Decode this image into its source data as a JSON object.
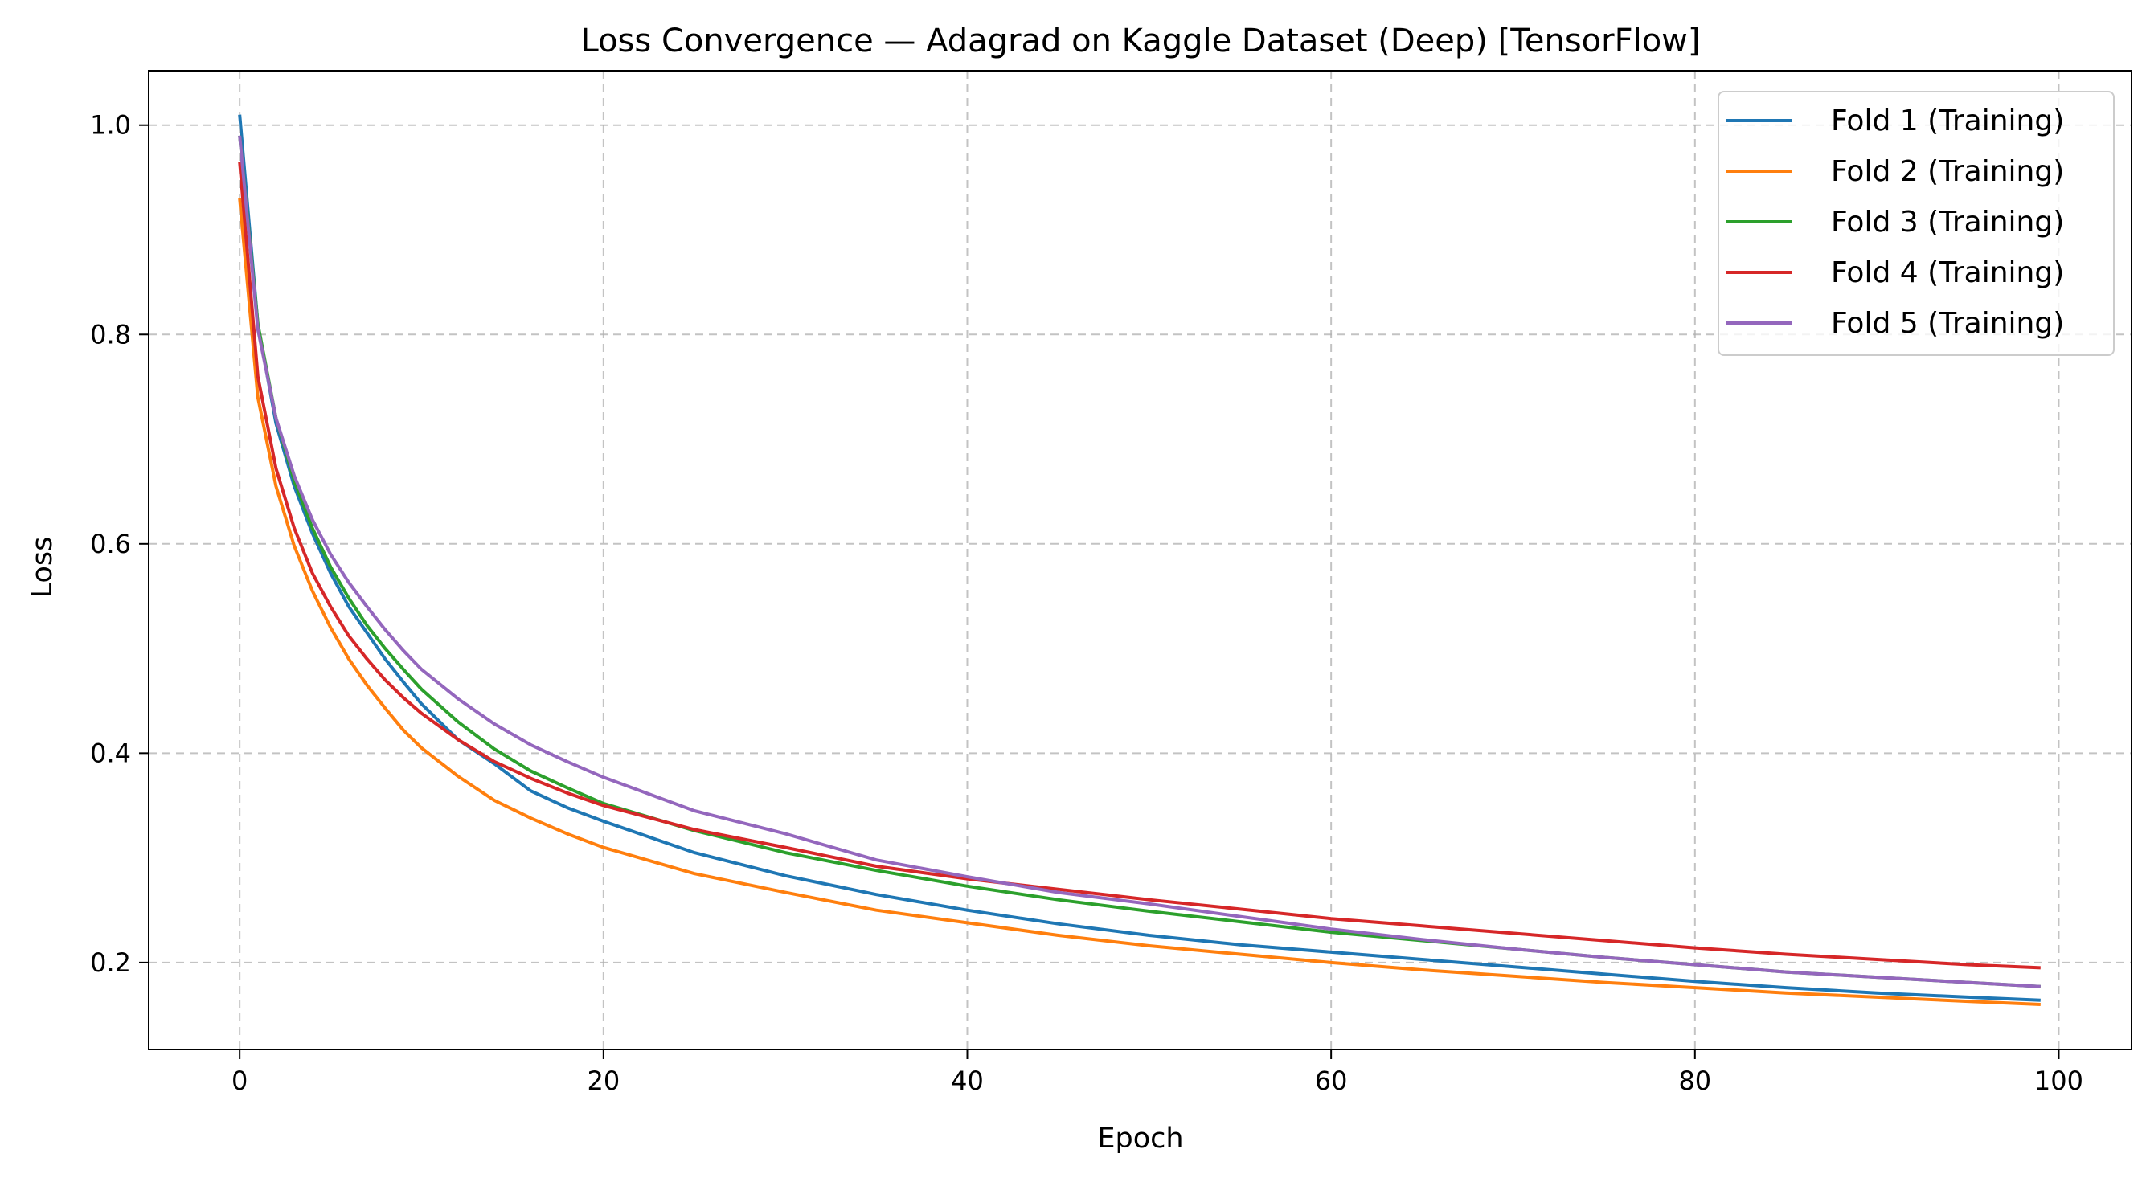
{
  "chart_data": {
    "type": "line",
    "title": "Loss Convergence — Adagrad on Kaggle Dataset (Deep) [TensorFlow]",
    "xlabel": "Epoch",
    "ylabel": "Loss",
    "xlim": [
      -5,
      104
    ],
    "ylim": [
      0.117,
      1.052
    ],
    "xticks": [
      0,
      20,
      40,
      60,
      80,
      100
    ],
    "yticks": [
      0.2,
      0.4,
      0.6,
      0.8,
      1.0
    ],
    "xtick_labels": [
      "0",
      "20",
      "40",
      "60",
      "80",
      "100"
    ],
    "ytick_labels": [
      "0.2",
      "0.4",
      "0.6",
      "0.8",
      "1.0"
    ],
    "grid": true,
    "legend_position": "top-right",
    "x": [
      0,
      1,
      2,
      3,
      4,
      5,
      6,
      7,
      8,
      9,
      10,
      12,
      14,
      16,
      18,
      20,
      25,
      30,
      35,
      40,
      45,
      50,
      55,
      60,
      65,
      70,
      75,
      80,
      85,
      90,
      95,
      99
    ],
    "series": [
      {
        "name": "Fold 1 (Training)",
        "color": "#1f77b4",
        "values": [
          1.01,
          0.81,
          0.715,
          0.655,
          0.61,
          0.572,
          0.54,
          0.515,
          0.49,
          0.468,
          0.447,
          0.413,
          0.39,
          0.364,
          0.348,
          0.335,
          0.305,
          0.283,
          0.265,
          0.25,
          0.237,
          0.226,
          0.217,
          0.21,
          0.203,
          0.196,
          0.189,
          0.182,
          0.176,
          0.171,
          0.167,
          0.164
        ]
      },
      {
        "name": "Fold 2 (Training)",
        "color": "#ff7f0e",
        "values": [
          0.93,
          0.74,
          0.655,
          0.598,
          0.555,
          0.52,
          0.49,
          0.465,
          0.443,
          0.422,
          0.405,
          0.378,
          0.355,
          0.338,
          0.323,
          0.31,
          0.285,
          0.267,
          0.25,
          0.238,
          0.226,
          0.216,
          0.208,
          0.2,
          0.193,
          0.187,
          0.181,
          0.176,
          0.171,
          0.167,
          0.163,
          0.16
        ]
      },
      {
        "name": "Fold 3 (Training)",
        "color": "#2ca02c",
        "values": [
          0.99,
          0.81,
          0.72,
          0.66,
          0.615,
          0.578,
          0.548,
          0.522,
          0.5,
          0.48,
          0.461,
          0.43,
          0.404,
          0.383,
          0.367,
          0.352,
          0.326,
          0.305,
          0.288,
          0.273,
          0.26,
          0.249,
          0.239,
          0.229,
          0.221,
          0.213,
          0.205,
          0.198,
          0.191,
          0.186,
          0.181,
          0.177
        ]
      },
      {
        "name": "Fold 4 (Training)",
        "color": "#d62728",
        "values": [
          0.965,
          0.76,
          0.672,
          0.615,
          0.572,
          0.54,
          0.512,
          0.49,
          0.47,
          0.453,
          0.438,
          0.413,
          0.392,
          0.376,
          0.362,
          0.35,
          0.327,
          0.31,
          0.292,
          0.28,
          0.27,
          0.26,
          0.251,
          0.242,
          0.235,
          0.228,
          0.221,
          0.214,
          0.208,
          0.203,
          0.198,
          0.195
        ]
      },
      {
        "name": "Fold 5 (Training)",
        "color": "#9467bd",
        "values": [
          0.99,
          0.805,
          0.72,
          0.665,
          0.623,
          0.59,
          0.563,
          0.54,
          0.518,
          0.498,
          0.48,
          0.452,
          0.428,
          0.408,
          0.392,
          0.377,
          0.345,
          0.323,
          0.298,
          0.282,
          0.267,
          0.256,
          0.244,
          0.232,
          0.222,
          0.213,
          0.205,
          0.198,
          0.191,
          0.186,
          0.181,
          0.177
        ]
      }
    ]
  }
}
